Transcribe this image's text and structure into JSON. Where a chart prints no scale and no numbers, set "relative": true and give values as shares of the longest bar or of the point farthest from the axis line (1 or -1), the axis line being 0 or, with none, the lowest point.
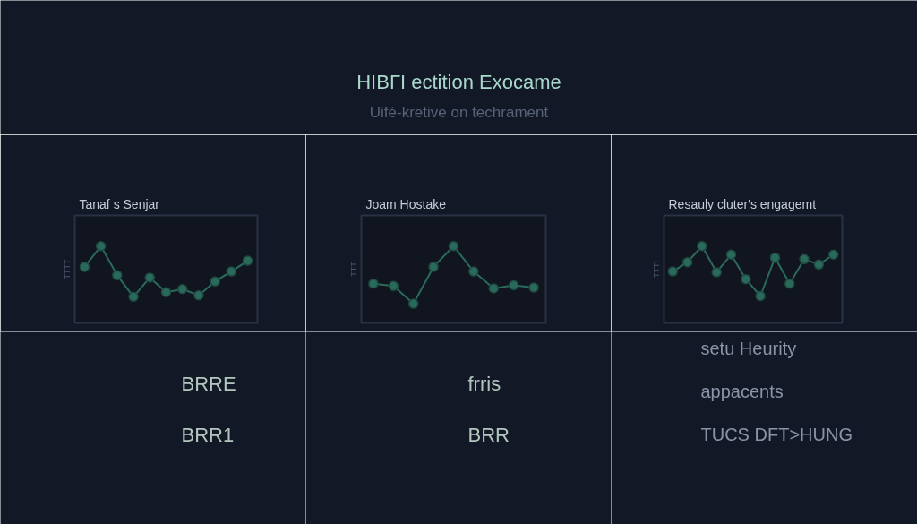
{
  "chart_data": [
    {
      "type": "other",
      "title": "HIBΓI ectition Exocame",
      "subtitle": "Uifé-kretive on techrament"
    },
    {
      "type": "line",
      "title": "Tanaf s Senjar",
      "ylabel": "TTTT",
      "categories": [
        null,
        null,
        null,
        null,
        null,
        null,
        null,
        null,
        null,
        null,
        null
      ],
      "series": [
        {
          "color": "#2a6a5b",
          "values": [
            0.73,
            1,
            0.62,
            0.34,
            0.59,
            0.4,
            0.44,
            0.36,
            0.54,
            0.67,
            0.81
          ]
        }
      ],
      "relative": true,
      "marker": "circle",
      "line_style": "solid",
      "grid": false,
      "annotations": [
        "BRRE",
        "BRR1"
      ]
    },
    {
      "type": "line",
      "title": "Joam Hostake",
      "ylabel": "TTT",
      "categories": [
        null,
        null,
        null,
        null,
        null,
        null,
        null,
        null,
        null
      ],
      "series": [
        {
          "color": "#2a6a5b",
          "values": [
            0.51,
            0.48,
            0.25,
            0.73,
            1,
            0.67,
            0.45,
            0.49,
            0.46
          ]
        }
      ],
      "relative": true,
      "marker": "circle",
      "line_style": "solid",
      "grid": false,
      "annotations": [
        "frris",
        "BRR"
      ]
    },
    {
      "type": "line",
      "title": "Resauly cluter's engagemt",
      "ylabel": "TTTI",
      "categories": [
        null,
        null,
        null,
        null,
        null,
        null,
        null,
        null,
        null,
        null,
        null,
        null
      ],
      "series": [
        {
          "color": "#2a6a5b",
          "values": [
            0.67,
            0.79,
            1,
            0.66,
            0.89,
            0.57,
            0.35,
            0.85,
            0.51,
            0.83,
            0.76,
            0.89
          ]
        }
      ],
      "relative": true,
      "marker": "circle",
      "line_style": "solid",
      "grid": false,
      "annotations": [
        "setu Heurity",
        "appacents",
        "TUCS DFT>HUNG"
      ]
    }
  ]
}
